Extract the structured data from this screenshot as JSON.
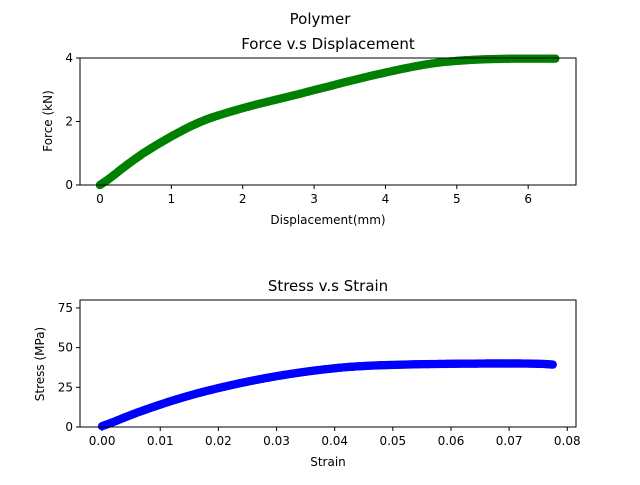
{
  "figure": {
    "suptitle": "Polymer"
  },
  "chart_data": [
    {
      "type": "scatter",
      "title": "Force v.s Displacement",
      "xlabel": "Displacement(mm)",
      "ylabel": "Force (kN)",
      "xlim": [
        -0.28,
        6.67
      ],
      "ylim": [
        0,
        4
      ],
      "xticks": [
        0,
        1,
        2,
        3,
        4,
        5,
        6
      ],
      "yticks": [
        0,
        2,
        4
      ],
      "grid": false,
      "series": [
        {
          "color": "#008000",
          "marker": "circle",
          "x": [
            0,
            0.1,
            0.2,
            0.3,
            0.4,
            0.5,
            0.6,
            0.7,
            0.8,
            0.9,
            1.0,
            1.1,
            1.2,
            1.3,
            1.4,
            1.5,
            1.6,
            1.8,
            2.0,
            2.2,
            2.4,
            2.6,
            2.8,
            3.0,
            3.2,
            3.4,
            3.6,
            3.8,
            4.0,
            4.2,
            4.4,
            4.6,
            4.8,
            5.0,
            5.2,
            5.4,
            5.6,
            5.8,
            6.0,
            6.2,
            6.38
          ],
          "values": [
            0.0,
            0.15,
            0.32,
            0.5,
            0.67,
            0.83,
            0.99,
            1.13,
            1.27,
            1.4,
            1.53,
            1.65,
            1.77,
            1.88,
            1.98,
            2.07,
            2.15,
            2.29,
            2.42,
            2.54,
            2.65,
            2.76,
            2.87,
            2.99,
            3.1,
            3.22,
            3.33,
            3.44,
            3.54,
            3.64,
            3.73,
            3.81,
            3.87,
            3.91,
            3.94,
            3.96,
            3.97,
            3.98,
            3.98,
            3.98,
            3.98
          ]
        }
      ]
    },
    {
      "type": "scatter",
      "title": "Stress v.s Strain",
      "xlabel": "Strain",
      "ylabel": "Stress (MPa)",
      "xlim": [
        -0.0038,
        0.0815
      ],
      "ylim": [
        0,
        80
      ],
      "xticks": [
        0.0,
        0.01,
        0.02,
        0.03,
        0.04,
        0.05,
        0.06,
        0.07,
        0.08
      ],
      "xtick_labels": [
        "0.00",
        "0.01",
        "0.02",
        "0.03",
        "0.04",
        "0.05",
        "0.06",
        "0.07",
        "0.08"
      ],
      "yticks": [
        0,
        25,
        50,
        75
      ],
      "grid": false,
      "series": [
        {
          "color": "#0000ff",
          "marker": "circle",
          "x": [
            0,
            0.002,
            0.004,
            0.006,
            0.008,
            0.01,
            0.012,
            0.014,
            0.016,
            0.018,
            0.02,
            0.022,
            0.024,
            0.026,
            0.028,
            0.03,
            0.032,
            0.034,
            0.036,
            0.038,
            0.04,
            0.042,
            0.044,
            0.046,
            0.048,
            0.05,
            0.052,
            0.054,
            0.056,
            0.058,
            0.06,
            0.062,
            0.064,
            0.066,
            0.068,
            0.07,
            0.072,
            0.074,
            0.076,
            0.0775
          ],
          "values": [
            0.5,
            3.2,
            6.2,
            9.0,
            11.6,
            14.1,
            16.5,
            18.7,
            20.8,
            22.7,
            24.5,
            26.2,
            27.8,
            29.3,
            30.7,
            32.0,
            33.2,
            34.3,
            35.3,
            36.2,
            37.0,
            37.7,
            38.2,
            38.6,
            38.9,
            39.1,
            39.3,
            39.5,
            39.6,
            39.7,
            39.8,
            39.9,
            39.9,
            40.0,
            40.0,
            40.0,
            40.0,
            39.9,
            39.7,
            39.3
          ]
        }
      ]
    }
  ]
}
